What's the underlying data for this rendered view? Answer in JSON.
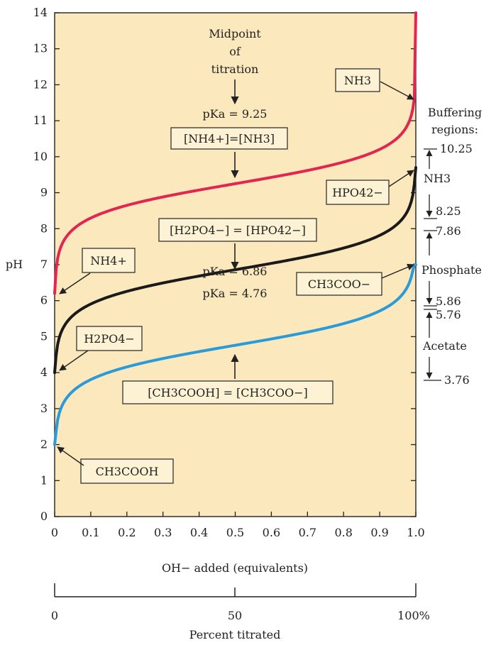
{
  "chart_data": {
    "type": "line",
    "xlabel": "OH− added (equivalents)",
    "ylabel": "pH",
    "xlim": [
      0,
      1
    ],
    "ylim": [
      0,
      14
    ],
    "x_ticks": [
      "0",
      "0.1",
      "0.2",
      "0.3",
      "0.4",
      "0.5",
      "0.6",
      "0.7",
      "0.8",
      "0.9",
      "1.0"
    ],
    "y_ticks": [
      "0",
      "1",
      "2",
      "3",
      "4",
      "5",
      "6",
      "7",
      "8",
      "9",
      "10",
      "11",
      "12",
      "13",
      "14"
    ],
    "background": "#fce8bd",
    "grid": false,
    "series": [
      {
        "color": "#e3264f",
        "pKa": 9.25,
        "x": [
          0.0,
          0.1,
          0.3,
          0.5,
          0.7,
          0.9,
          0.99,
          1.0
        ],
        "y": [
          6.2,
          8.3,
          8.9,
          9.25,
          9.6,
          10.2,
          11.2,
          14.0
        ]
      },
      {
        "color": "#1a1a1a",
        "pKa": 6.86,
        "x": [
          0.0,
          0.1,
          0.3,
          0.5,
          0.7,
          0.9,
          0.99,
          1.0
        ],
        "y": [
          4.0,
          5.9,
          6.5,
          6.86,
          7.2,
          7.8,
          8.8,
          9.7
        ]
      },
      {
        "color": "#2a9ad8",
        "pKa": 4.76,
        "x": [
          0.0,
          0.1,
          0.3,
          0.5,
          0.7,
          0.9,
          0.99,
          1.0
        ],
        "y": [
          2.0,
          3.8,
          4.4,
          4.76,
          5.1,
          5.7,
          6.7,
          7.0
        ]
      }
    ],
    "annotations": {
      "midpoint": [
        "Midpoint",
        "of",
        "titration"
      ],
      "pka_nh3": "pKa = 9.25",
      "pka_phos": "pKa = 6.86",
      "pka_acet": "pKa = 4.76",
      "eq_nh": "[NH4+]=[NH3]",
      "eq_phos": "[H2PO4−] = [HPO42−]",
      "eq_acet": "[CH3COOH] = [CH3COO−]",
      "nh3": "NH3",
      "nh4": "NH4+",
      "hpo4": "HPO42−",
      "h2po4": "H2PO4−",
      "ch3coo": "CH3COO−",
      "ch3cooh": "CH3COOH"
    },
    "buffering_regions": {
      "title": [
        "Buffering",
        "regions:"
      ],
      "regions": [
        {
          "name": "NH3",
          "high": "10.25",
          "low": "8.25"
        },
        {
          "name": "Phosphate",
          "high": "7.86",
          "low": "5.86"
        },
        {
          "name": "Acetate",
          "high": "5.76",
          "low": "3.76"
        }
      ]
    },
    "percent_axis": {
      "label": "Percent titrated",
      "ticks": [
        "0",
        "50",
        "100%"
      ]
    }
  }
}
